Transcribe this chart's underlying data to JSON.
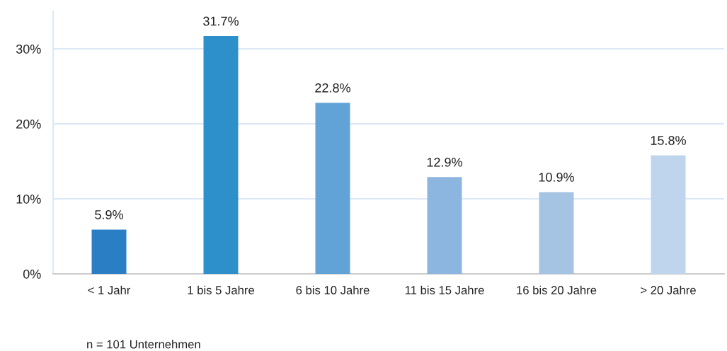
{
  "chart_data": {
    "type": "bar",
    "categories": [
      "< 1 Jahr",
      "1 bis 5 Jahre",
      "6 bis 10 Jahre",
      "11 bis 15 Jahre",
      "16 bis 20 Jahre",
      "> 20 Jahre"
    ],
    "values": [
      5.9,
      31.7,
      22.8,
      12.9,
      10.9,
      15.8
    ],
    "value_labels": [
      "5.9%",
      "31.7%",
      "22.8%",
      "12.9%",
      "10.9%",
      "15.8%"
    ],
    "colors": [
      "#2a7fc4",
      "#2e90cb",
      "#62a3d7",
      "#8cb5e0",
      "#a5c4e4",
      "#bfd5ee"
    ],
    "yticks": [
      {
        "value": 0,
        "label": "0%"
      },
      {
        "value": 10,
        "label": "10%"
      },
      {
        "value": 20,
        "label": "20%"
      },
      {
        "value": 30,
        "label": "30%"
      }
    ],
    "ylim": [
      0,
      35
    ],
    "grid": "y",
    "annotations": [
      "n = 101 Unternehmen"
    ]
  }
}
